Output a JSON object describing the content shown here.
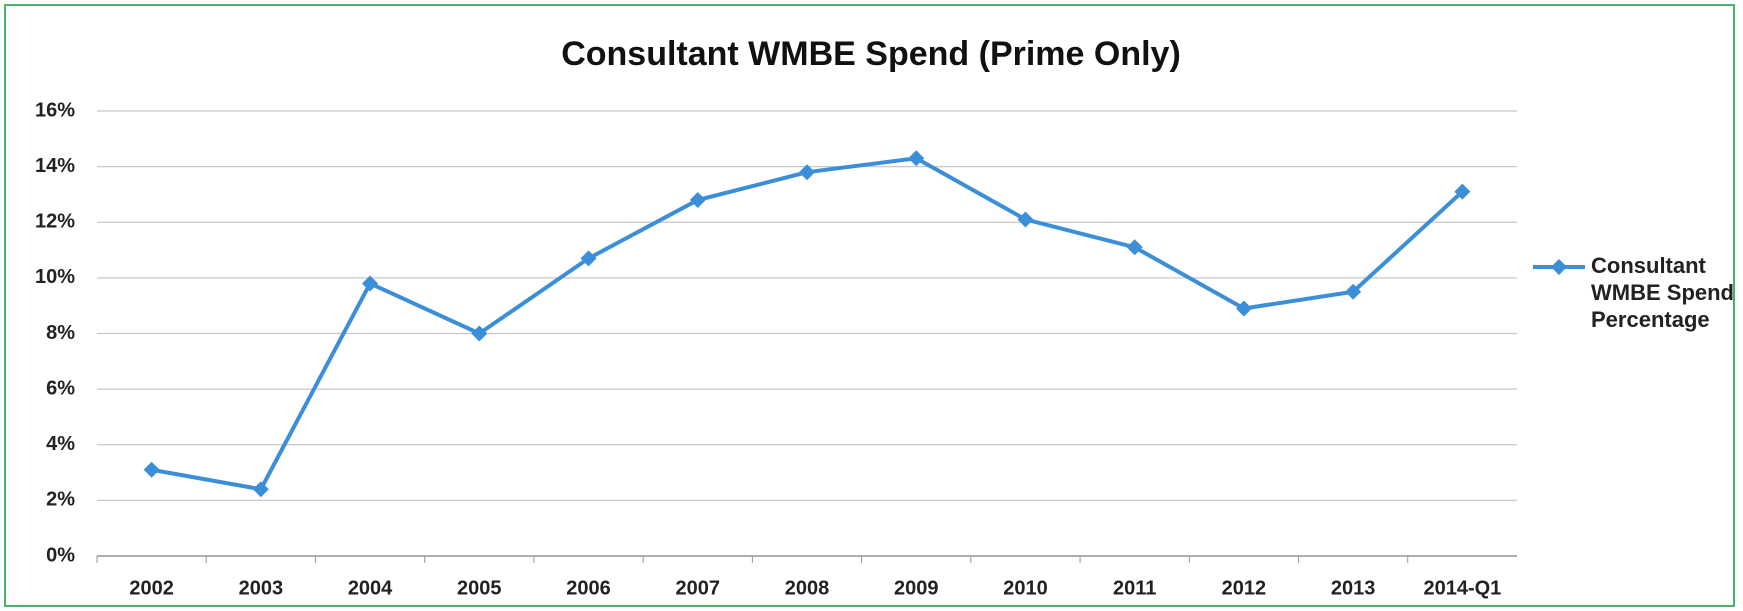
{
  "chart_data": {
    "type": "line",
    "title": "Consultant WMBE Spend (Prime Only)",
    "categories": [
      "2002",
      "2003",
      "2004",
      "2005",
      "2006",
      "2007",
      "2008",
      "2009",
      "2010",
      "2011",
      "2012",
      "2013",
      "2014-Q1"
    ],
    "series": [
      {
        "name": "Consultant WMBE Spend Percentage",
        "color": "#3b8fd9",
        "values": [
          3.1,
          2.4,
          9.8,
          8.0,
          10.7,
          12.8,
          13.8,
          14.3,
          12.1,
          11.1,
          8.9,
          9.5,
          13.1
        ]
      }
    ],
    "ylim": [
      0,
      16
    ],
    "yticks": [
      {
        "value": 0,
        "label": "0%"
      },
      {
        "value": 2,
        "label": "2%"
      },
      {
        "value": 4,
        "label": "4%"
      },
      {
        "value": 6,
        "label": "6%"
      },
      {
        "value": 8,
        "label": "8%"
      },
      {
        "value": 10,
        "label": "10%"
      },
      {
        "value": 12,
        "label": "12%"
      },
      {
        "value": 14,
        "label": "14%"
      },
      {
        "value": 16,
        "label": "16%"
      }
    ],
    "grid": true,
    "legend": "right"
  }
}
